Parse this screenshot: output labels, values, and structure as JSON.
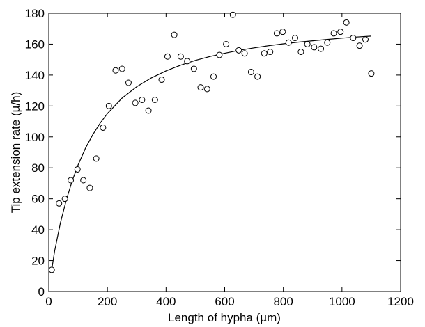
{
  "chart_data": {
    "type": "scatter",
    "title": "",
    "xlabel": "Length of hypha (µm)",
    "ylabel": "Tip extension rate (µ/h)",
    "xlim": [
      0,
      1200
    ],
    "ylim": [
      0,
      180
    ],
    "xticks": [
      0,
      200,
      400,
      600,
      800,
      1000,
      1200
    ],
    "yticks": [
      0,
      20,
      40,
      60,
      80,
      100,
      120,
      140,
      160,
      180
    ],
    "xtick_labels": [
      "0",
      "200",
      "400",
      "600",
      "800",
      "1000",
      "1200"
    ],
    "ytick_labels": [
      "0",
      "20",
      "40",
      "60",
      "80",
      "100",
      "120",
      "140",
      "160",
      "180"
    ],
    "grid": false,
    "legend": "none",
    "series": [
      {
        "kind": "scatter",
        "marker": "open-circle",
        "x": [
          10,
          35,
          55,
          75,
          98,
          118,
          140,
          162,
          185,
          205,
          228,
          250,
          272,
          295,
          318,
          340,
          362,
          385,
          405,
          428,
          450,
          472,
          495,
          518,
          540,
          562,
          582,
          605,
          628,
          648,
          668,
          690,
          712,
          735,
          755,
          778,
          798,
          818,
          840,
          860,
          882,
          905,
          928,
          950,
          972,
          995,
          1015,
          1038,
          1060,
          1080,
          1100
        ],
        "y": [
          14,
          57,
          60,
          72,
          79,
          72,
          67,
          86,
          106,
          120,
          143,
          144,
          135,
          122,
          124,
          117,
          124,
          137,
          152,
          166,
          152,
          149,
          144,
          132,
          131,
          139,
          153,
          160,
          179,
          156,
          154,
          142,
          139,
          154,
          155,
          167,
          168,
          161,
          164,
          155,
          160,
          158,
          157,
          161,
          167,
          168,
          174,
          164,
          159,
          163,
          141
        ]
      },
      {
        "kind": "line",
        "model": "saturating fit",
        "x": [
          10,
          20,
          40,
          60,
          80,
          100,
          125,
          150,
          175,
          200,
          250,
          300,
          350,
          400,
          450,
          500,
          550,
          600,
          650,
          700,
          750,
          800,
          850,
          900,
          950,
          1000,
          1050,
          1100
        ],
        "y": [
          14,
          26.2,
          44.6,
          59.4,
          71.7,
          81.9,
          92.6,
          101.4,
          108.8,
          115.1,
          125.1,
          132.5,
          138.2,
          142.7,
          146.4,
          149.5,
          152.0,
          154.1,
          156.0,
          157.6,
          159.0,
          160.2,
          161.3,
          162.2,
          163.1,
          163.9,
          164.6,
          165.2
        ]
      }
    ]
  }
}
